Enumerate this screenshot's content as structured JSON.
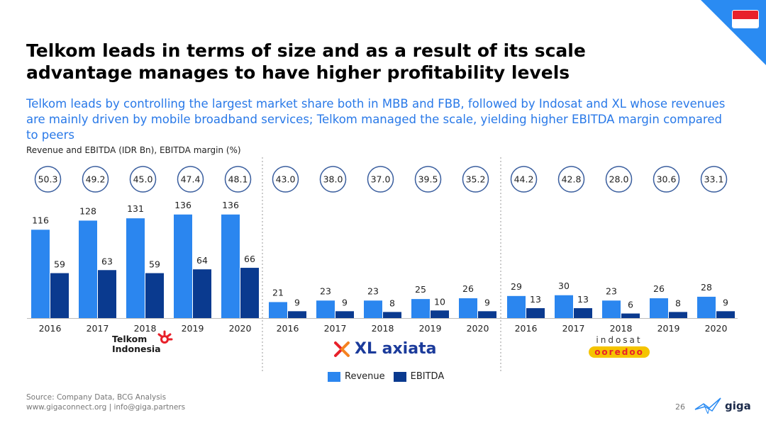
{
  "title": "Telkom leads in terms of size and as a result of its scale advantage manages to have higher profitability levels",
  "subtitle": "Telkom leads by controlling the largest market share both in MBB and FBB, followed by Indosat and XL whose revenues are mainly driven by mobile broadband services; Telkom managed the scale, yielding higher EBITDA margin compared to peers",
  "unit_label": "Revenue and EBITDA (IDR Bn), EBITDA margin (%)",
  "legend": {
    "revenue": "Revenue",
    "ebitda": "EBITDA"
  },
  "logos": {
    "telkom": [
      "Telkom",
      "Indonesia"
    ],
    "xl": "XL axiata",
    "indosat": [
      "indosat",
      "ooredoo"
    ]
  },
  "footer": {
    "source": "Source: Company Data, BCG Analysis",
    "contact": "www.gigaconnect.org  |  info@giga.partners"
  },
  "page_number": "26",
  "brand": "giga",
  "colors": {
    "revenue": "#2b86ef",
    "ebitda": "#0a3a8f",
    "accent": "#2979e8",
    "circle_border": "#3a5e9e"
  },
  "chart_data": {
    "type": "bar",
    "categories": [
      "2016",
      "2017",
      "2018",
      "2019",
      "2020"
    ],
    "groups": [
      {
        "revenue": [
          116,
          128,
          131,
          136,
          136
        ],
        "ebitda": [
          59,
          63,
          59,
          64,
          66
        ],
        "margin": [
          "50.3",
          "49.2",
          "45.0",
          "47.4",
          "48.1"
        ]
      },
      {
        "revenue": [
          21,
          23,
          23,
          25,
          26
        ],
        "ebitda": [
          9,
          9,
          8,
          10,
          9
        ],
        "margin": [
          "43.0",
          "38.0",
          "37.0",
          "39.5",
          "35.2"
        ]
      },
      {
        "revenue": [
          29,
          30,
          23,
          26,
          28
        ],
        "ebitda": [
          13,
          13,
          6,
          8,
          9
        ],
        "margin": [
          "44.2",
          "42.8",
          "28.0",
          "30.6",
          "33.1"
        ]
      }
    ]
  }
}
